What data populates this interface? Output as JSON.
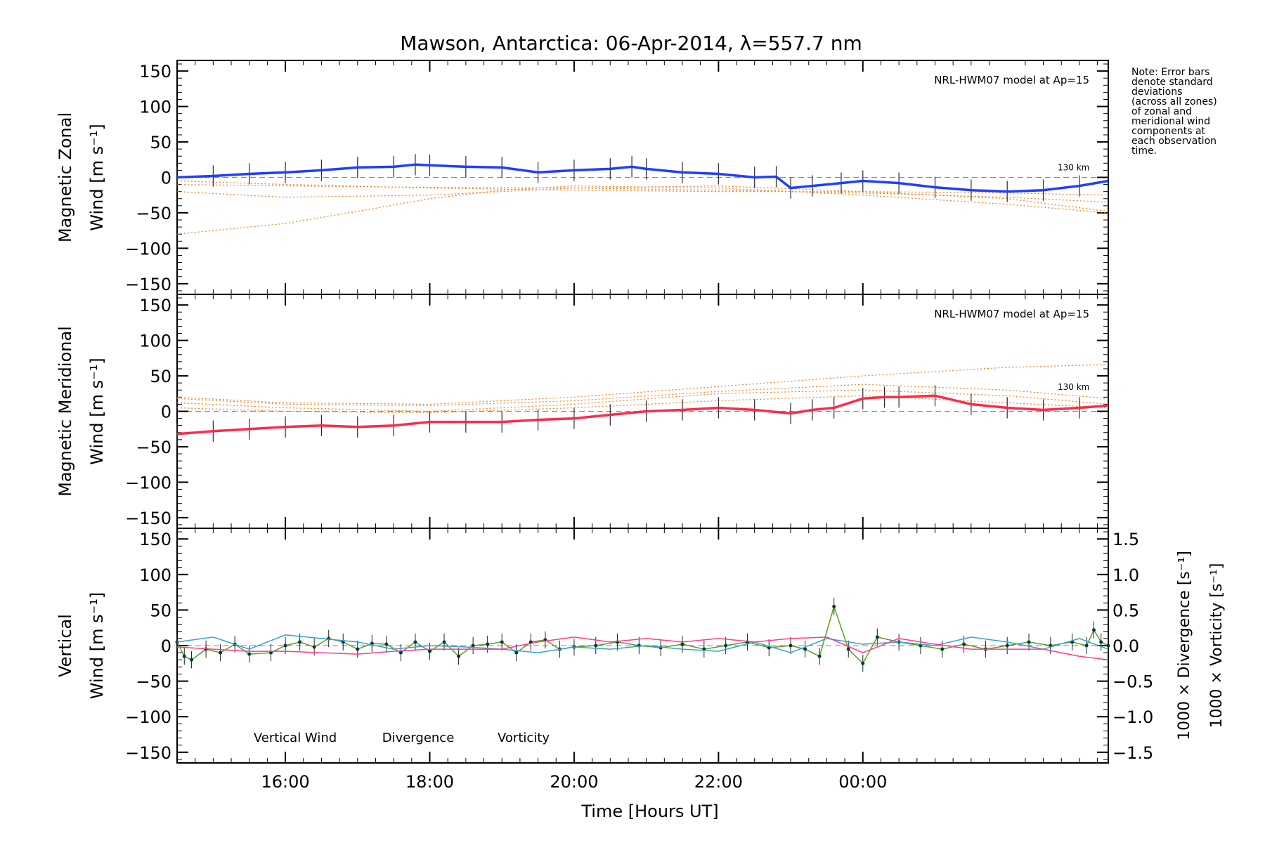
{
  "title": "Mawson, Antarctica: 06-Apr-2014, λ=557.7 nm",
  "note_lines": [
    "Note: Error bars",
    "denote standard",
    "deviations",
    "(across all zones)",
    "of zonal and",
    "meridional wind",
    "components at",
    "each observation",
    "time."
  ],
  "xlabel": "Time [Hours UT]",
  "colors": {
    "zonal": "#1f3fff",
    "meridional": "#ff2a4a",
    "model": "#f08020",
    "vertical": "#5aa020",
    "divergence": "#3aa0cc",
    "vorticity": "#ff3c8c",
    "axis": "#000000"
  },
  "chart_data": [
    {
      "type": "line",
      "panel": "zonal",
      "ylabel": [
        "Magnetic Zonal",
        "Wind [m s⁻¹]"
      ],
      "ylim": [
        -165,
        165
      ],
      "yticks": [
        -150,
        -100,
        -50,
        0,
        50,
        100,
        150
      ],
      "ytick_labels": [
        "−150",
        "−100",
        "−50",
        "0",
        "50",
        "100",
        "150"
      ],
      "xlim": [
        14.5,
        27.4
      ],
      "xticks": [
        16,
        18,
        20,
        22,
        24
      ],
      "xtick_labels": [
        "16:00",
        "18:00",
        "20:00",
        "22:00",
        "00:00"
      ],
      "model_label": "NRL-HWM07 model at Ap=15",
      "model_level_label": "130 km",
      "series": [
        {
          "role": "wind",
          "x": [
            14.5,
            15.0,
            15.5,
            16.0,
            16.5,
            17.0,
            17.5,
            17.8,
            18.0,
            18.5,
            19.0,
            19.5,
            20.0,
            20.5,
            20.8,
            21.0,
            21.5,
            22.0,
            22.5,
            22.8,
            23.0,
            23.3,
            23.7,
            24.0,
            24.5,
            25.0,
            25.5,
            26.0,
            26.5,
            27.0,
            27.4
          ],
          "y": [
            0,
            2,
            5,
            7,
            10,
            14,
            15,
            18,
            17,
            15,
            14,
            7,
            10,
            12,
            15,
            12,
            7,
            5,
            0,
            1,
            -15,
            -12,
            -8,
            -5,
            -8,
            -14,
            -18,
            -20,
            -18,
            -12,
            -5
          ],
          "error": 15
        },
        {
          "role": "model",
          "x": [
            14.5,
            16,
            18,
            20,
            22,
            24,
            26,
            27.4
          ],
          "y": [
            -5,
            -10,
            -15,
            -18,
            -20,
            -20,
            -22,
            -25
          ]
        },
        {
          "role": "model",
          "x": [
            14.5,
            16,
            18,
            20,
            22,
            24,
            26,
            27.4
          ],
          "y": [
            -10,
            -12,
            -14,
            -15,
            -18,
            -22,
            -28,
            -35
          ]
        },
        {
          "role": "model",
          "x": [
            14.5,
            16,
            18,
            20,
            22,
            24,
            26,
            27.4
          ],
          "y": [
            -20,
            -28,
            -25,
            -15,
            -12,
            -20,
            -30,
            -48
          ]
        },
        {
          "role": "model",
          "x": [
            14.5,
            16,
            17,
            18,
            19,
            20,
            22,
            24,
            26,
            27.4
          ],
          "y": [
            -80,
            -65,
            -48,
            -30,
            -18,
            -12,
            -15,
            -25,
            -38,
            -50
          ]
        }
      ]
    },
    {
      "type": "line",
      "panel": "meridional",
      "ylabel": [
        "Magnetic Meridional",
        "Wind [m s⁻¹]"
      ],
      "ylim": [
        -165,
        165
      ],
      "yticks": [
        -150,
        -100,
        -50,
        0,
        50,
        100,
        150
      ],
      "ytick_labels": [
        "−150",
        "−100",
        "−50",
        "0",
        "50",
        "100",
        "150"
      ],
      "xlim": [
        14.5,
        27.4
      ],
      "xticks": [
        16,
        18,
        20,
        22,
        24
      ],
      "xtick_labels": [
        "16:00",
        "18:00",
        "20:00",
        "22:00",
        "00:00"
      ],
      "model_label": "NRL-HWM07 model at Ap=15",
      "model_level_label": "130 km",
      "series": [
        {
          "role": "wind",
          "x": [
            14.5,
            15.0,
            15.5,
            16.0,
            16.5,
            17.0,
            17.5,
            18.0,
            18.5,
            19.0,
            19.5,
            20.0,
            20.5,
            21.0,
            21.5,
            22.0,
            22.5,
            23.0,
            23.3,
            23.6,
            24.0,
            24.3,
            24.5,
            25.0,
            25.5,
            26.0,
            26.5,
            27.0,
            27.4
          ],
          "y": [
            -32,
            -28,
            -25,
            -22,
            -20,
            -22,
            -20,
            -15,
            -15,
            -15,
            -12,
            -10,
            -5,
            0,
            2,
            5,
            2,
            -3,
            2,
            5,
            18,
            20,
            20,
            22,
            10,
            5,
            2,
            5,
            8
          ],
          "error": 15
        },
        {
          "role": "model",
          "x": [
            14.5,
            16,
            18,
            20,
            22,
            24,
            26,
            27.4
          ],
          "y": [
            20,
            12,
            10,
            20,
            35,
            50,
            62,
            66
          ]
        },
        {
          "role": "model",
          "x": [
            14.5,
            16,
            18,
            20,
            22,
            24,
            26,
            27.4
          ],
          "y": [
            18,
            10,
            8,
            15,
            28,
            38,
            30,
            18
          ]
        },
        {
          "role": "model",
          "x": [
            14.5,
            16,
            18,
            20,
            22,
            24,
            26,
            27.4
          ],
          "y": [
            12,
            5,
            0,
            10,
            25,
            30,
            22,
            10
          ]
        },
        {
          "role": "model",
          "x": [
            14.5,
            16,
            18,
            20,
            22,
            24,
            26,
            27.4
          ],
          "y": [
            5,
            0,
            -2,
            5,
            15,
            22,
            12,
            5
          ]
        }
      ]
    },
    {
      "type": "line",
      "panel": "vertical",
      "ylabel": [
        "Vertical",
        "Wind [m s⁻¹]"
      ],
      "ylim": [
        -165,
        165
      ],
      "yticks": [
        -150,
        -100,
        -50,
        0,
        50,
        100,
        150
      ],
      "ytick_labels": [
        "−150",
        "−100",
        "−50",
        "0",
        "50",
        "100",
        "150"
      ],
      "y2label": [
        "1000 × Divergence [s⁻¹]",
        "1000 × Vorticity [s⁻¹]"
      ],
      "y2lim": [
        -1.65,
        1.65
      ],
      "y2ticks": [
        -1.5,
        -1.0,
        -0.5,
        0.0,
        0.5,
        1.0,
        1.5
      ],
      "y2tick_labels": [
        "−1.5",
        "−1.0",
        "−0.5",
        "0.0",
        "0.5",
        "1.0",
        "1.5"
      ],
      "xlim": [
        14.5,
        27.4
      ],
      "xticks": [
        16,
        18,
        20,
        22,
        24
      ],
      "xtick_labels": [
        "16:00",
        "18:00",
        "20:00",
        "22:00",
        "00:00"
      ],
      "legend": [
        "Vertical Wind",
        "Divergence",
        "Vorticity"
      ],
      "series": [
        {
          "name": "Vertical Wind",
          "x": [
            14.5,
            14.6,
            14.7,
            14.9,
            15.1,
            15.3,
            15.5,
            15.8,
            16.0,
            16.2,
            16.4,
            16.6,
            16.8,
            17.0,
            17.2,
            17.4,
            17.6,
            17.8,
            18.0,
            18.2,
            18.4,
            18.6,
            18.8,
            19.0,
            19.2,
            19.4,
            19.6,
            19.8,
            20.0,
            20.3,
            20.6,
            20.9,
            21.2,
            21.5,
            21.8,
            22.1,
            22.4,
            22.7,
            23.0,
            23.2,
            23.4,
            23.6,
            23.8,
            24.0,
            24.2,
            24.5,
            24.8,
            25.1,
            25.4,
            25.7,
            26.0,
            26.3,
            26.6,
            26.9,
            27.1,
            27.2,
            27.3,
            27.4
          ],
          "y": [
            5,
            -15,
            -20,
            -5,
            -10,
            2,
            -12,
            -10,
            0,
            5,
            -2,
            10,
            5,
            -5,
            3,
            2,
            -10,
            5,
            -8,
            5,
            -15,
            0,
            2,
            5,
            -10,
            5,
            8,
            -5,
            -2,
            0,
            5,
            0,
            -3,
            2,
            -5,
            0,
            5,
            -3,
            0,
            -5,
            -15,
            55,
            -5,
            -25,
            12,
            5,
            0,
            -5,
            2,
            -5,
            0,
            5,
            0,
            5,
            0,
            22,
            5,
            0
          ],
          "error": 12
        },
        {
          "name": "Divergence",
          "x": [
            14.5,
            15.0,
            15.5,
            16.0,
            16.5,
            17.0,
            17.5,
            18.0,
            18.5,
            19.0,
            19.5,
            20.0,
            20.5,
            21.0,
            21.5,
            22.0,
            22.5,
            23.0,
            23.5,
            24.0,
            24.5,
            25.0,
            25.5,
            26.0,
            26.5,
            27.0,
            27.4
          ],
          "y": [
            0.05,
            0.12,
            -0.05,
            0.15,
            0.1,
            0.05,
            -0.05,
            0.0,
            -0.02,
            -0.05,
            -0.1,
            -0.02,
            -0.05,
            0.0,
            -0.05,
            -0.08,
            0.05,
            -0.1,
            0.1,
            0.02,
            0.05,
            0.0,
            0.12,
            0.05,
            -0.05,
            0.1,
            -0.05
          ]
        },
        {
          "name": "Vorticity",
          "x": [
            14.5,
            15.0,
            15.5,
            16.0,
            16.5,
            17.0,
            17.5,
            18.0,
            18.5,
            19.0,
            19.5,
            20.0,
            20.5,
            21.0,
            21.5,
            22.0,
            22.5,
            23.0,
            23.5,
            24.0,
            24.5,
            25.0,
            25.5,
            26.0,
            26.5,
            27.0,
            27.4
          ],
          "y": [
            -0.02,
            -0.05,
            -0.08,
            -0.08,
            -0.1,
            -0.12,
            -0.08,
            -0.05,
            -0.05,
            -0.05,
            0.05,
            0.12,
            0.05,
            0.1,
            0.05,
            0.1,
            0.05,
            0.1,
            0.12,
            -0.1,
            0.1,
            0.02,
            -0.05,
            -0.05,
            -0.05,
            -0.15,
            -0.2
          ]
        }
      ]
    }
  ]
}
